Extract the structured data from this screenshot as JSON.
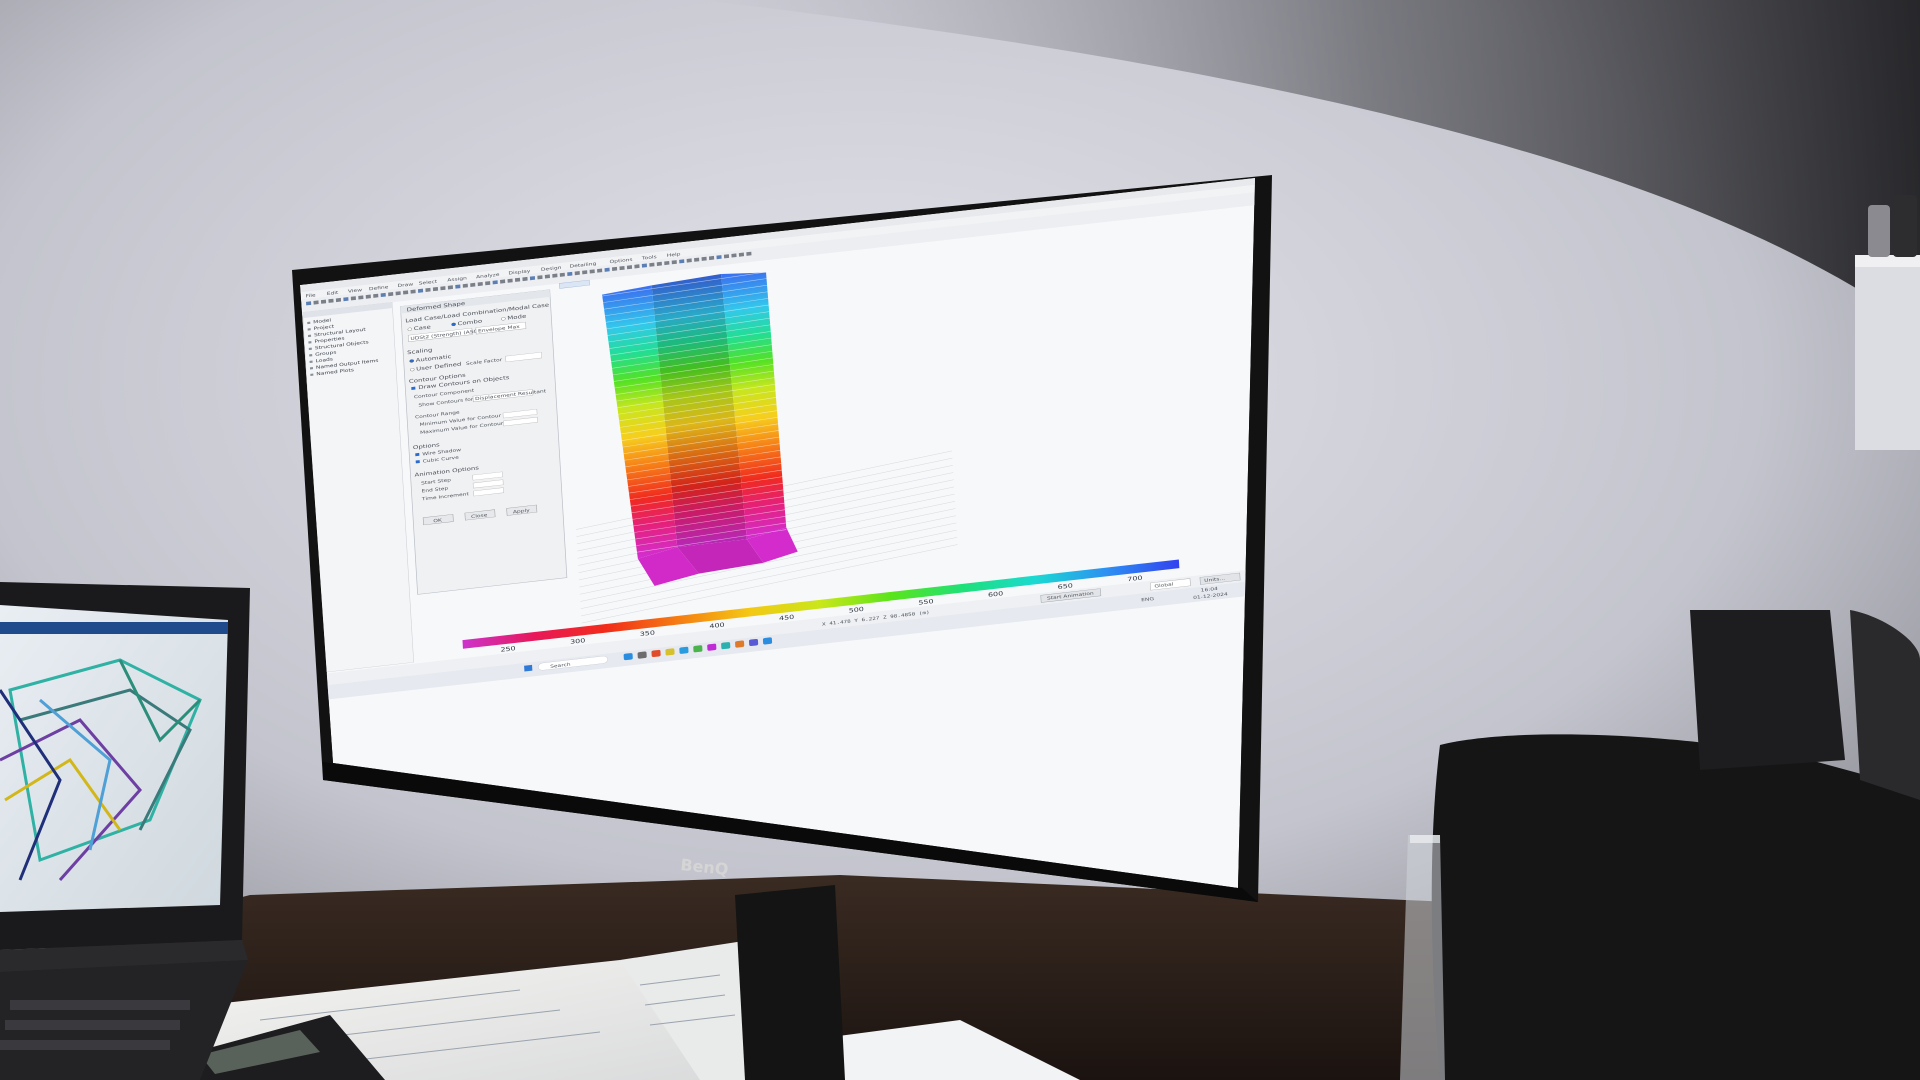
{
  "monitor": {
    "brand": "BenQ"
  },
  "app": {
    "menu_items": [
      "File",
      "Edit",
      "View",
      "Define",
      "Draw",
      "Select",
      "Assign",
      "Analyze",
      "Display",
      "Design",
      "Detailing",
      "Options",
      "Tools",
      "Help"
    ],
    "dialog_title": "Deformed Shape",
    "dialog": {
      "section_case": "Load Case/Load Combination/Modal Case",
      "radio_case": "Case",
      "radio_combo": "Combo",
      "radio_mode": "Mode",
      "combo_value": "UDSt2 (Strength) (ASCE)",
      "combo_style": "Envelope Max",
      "section_scaling": "Scaling",
      "scaling_auto": "Automatic",
      "scaling_user": "User Defined",
      "scale_factor_label": "Scale Factor",
      "section_contour": "Contour Options",
      "draw_contours": "Draw Contours on Objects",
      "contour_component": "Contour Component",
      "show_contours_label": "Show Contours for",
      "show_contours_value": "Displacement Resultant",
      "contour_range": "Contour Range",
      "min_value": "Minimum Value for Contour Range",
      "max_value": "Maximum Value for Contour Range",
      "options": "Options",
      "wire_shadow": "Wire Shadow",
      "cubic_curve": "Cubic Curve",
      "animation": "Animation Options",
      "start_step": "Start Step",
      "end_step": "End Step",
      "time_increment": "Time Increment",
      "ok": "OK",
      "close": "Close",
      "apply": "Apply"
    },
    "tree_items": [
      "Model",
      "Project",
      "Structural Layout",
      "Properties",
      "Structural Objects",
      "Groups",
      "Loads",
      "Named Output Items",
      "Named Plots"
    ],
    "colorbar_ticks": [
      "250",
      "300",
      "350",
      "400",
      "450",
      "500",
      "550",
      "600",
      "650",
      "700"
    ],
    "coord_readout": "X 41.478  Y 6.227  Z 98.4850 (m)",
    "status_start_animation": "Start Animation",
    "status_units": "Units...",
    "status_global": "Global",
    "taskbar_search": "Search",
    "taskbar_lang": "ENG",
    "taskbar_time": "16:04",
    "taskbar_date": "01-12-2024"
  },
  "colors": {
    "wall": "#c9cad3",
    "screen_bg": "#f7f8fa",
    "bezel": "#141414",
    "desk": "#2a1f1a"
  }
}
